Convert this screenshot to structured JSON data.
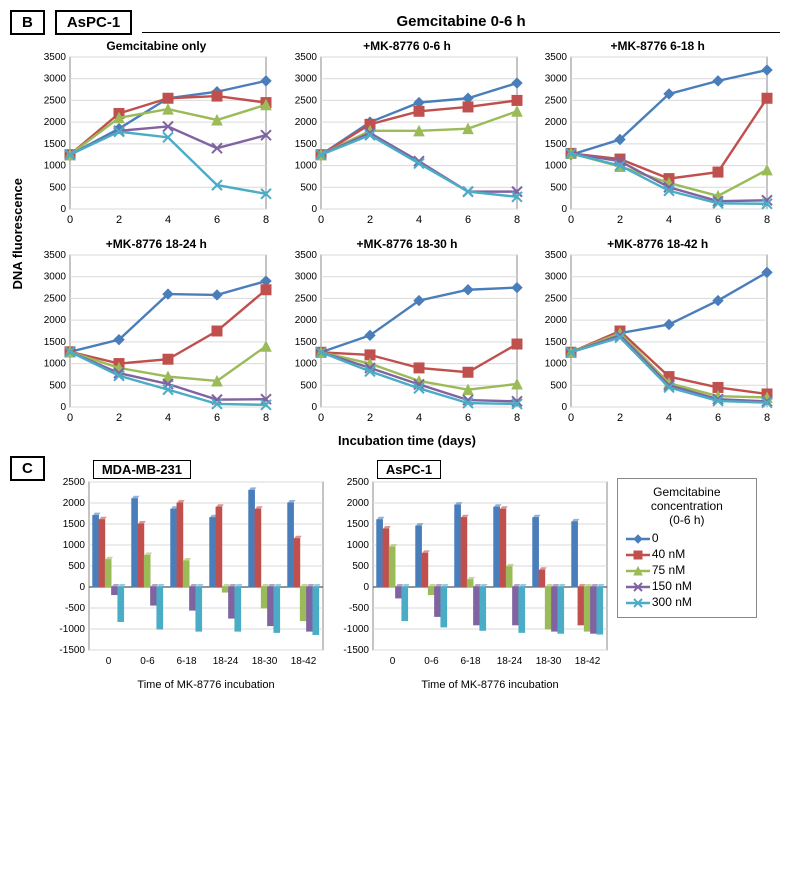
{
  "panelB": {
    "label": "B",
    "cell_line": "AsPC-1",
    "header": "Gemcitabine 0-6 h",
    "y_label": "DNA fluorescence",
    "x_label": "Incubation time (days)",
    "x_values": [
      0,
      2,
      4,
      6,
      8
    ],
    "ylim": [
      0,
      3500
    ],
    "ytick_step": 500,
    "grid_color": "#d9d9d9",
    "background": "#ffffff",
    "series_style": {
      "0": {
        "color": "#4a7ebb",
        "marker": "diamond"
      },
      "40": {
        "color": "#c0504d",
        "marker": "square"
      },
      "75": {
        "color": "#9bbb59",
        "marker": "triangle"
      },
      "150": {
        "color": "#8064a2",
        "marker": "x"
      },
      "300": {
        "color": "#4bacc6",
        "marker": "x"
      }
    },
    "subplots": [
      {
        "title": "Gemcitabine only",
        "data": {
          "0": [
            1250,
            1850,
            2550,
            2700,
            2950
          ],
          "40": [
            1250,
            2200,
            2550,
            2600,
            2450
          ],
          "75": [
            1250,
            2100,
            2300,
            2050,
            2400
          ],
          "150": [
            1250,
            1800,
            1900,
            1400,
            1700
          ],
          "300": [
            1250,
            1780,
            1650,
            550,
            350
          ]
        }
      },
      {
        "title": "+MK-8776 0-6 h",
        "data": {
          "0": [
            1250,
            2000,
            2450,
            2550,
            2900
          ],
          "40": [
            1250,
            1950,
            2250,
            2350,
            2500
          ],
          "75": [
            1250,
            1800,
            1800,
            1850,
            2250
          ],
          "150": [
            1250,
            1750,
            1100,
            400,
            400
          ],
          "300": [
            1250,
            1700,
            1050,
            400,
            280
          ]
        }
      },
      {
        "title": "+MK-8776 6-18 h",
        "data": {
          "0": [
            1250,
            1600,
            2650,
            2950,
            3200
          ],
          "40": [
            1280,
            1150,
            700,
            850,
            2550
          ],
          "75": [
            1280,
            980,
            600,
            300,
            900
          ],
          "150": [
            1280,
            1100,
            500,
            180,
            200
          ],
          "300": [
            1280,
            1000,
            420,
            130,
            120
          ]
        }
      },
      {
        "title": "+MK-8776 18-24 h",
        "data": {
          "0": [
            1270,
            1550,
            2600,
            2580,
            2900
          ],
          "40": [
            1270,
            1000,
            1100,
            1750,
            2700
          ],
          "75": [
            1270,
            900,
            700,
            600,
            1400
          ],
          "150": [
            1270,
            780,
            530,
            170,
            180
          ],
          "300": [
            1270,
            720,
            400,
            70,
            50
          ]
        }
      },
      {
        "title": "+MK-8776 18-30 h",
        "data": {
          "0": [
            1260,
            1650,
            2450,
            2700,
            2750
          ],
          "40": [
            1260,
            1200,
            900,
            800,
            1450
          ],
          "75": [
            1260,
            1000,
            600,
            400,
            530
          ],
          "150": [
            1260,
            900,
            520,
            160,
            130
          ],
          "300": [
            1260,
            820,
            430,
            90,
            70
          ]
        }
      },
      {
        "title": "+MK-8776 18-42 h",
        "data": {
          "0": [
            1260,
            1700,
            1900,
            2450,
            3100
          ],
          "40": [
            1260,
            1750,
            700,
            450,
            300
          ],
          "75": [
            1260,
            1700,
            550,
            250,
            220
          ],
          "150": [
            1260,
            1650,
            500,
            180,
            130
          ],
          "300": [
            1260,
            1600,
            450,
            140,
            100
          ]
        }
      }
    ]
  },
  "panelC": {
    "label": "C",
    "x_label": "Time of MK-8776 incubation",
    "x_categories": [
      "0",
      "0-6",
      "6-18",
      "18-24",
      "18-30",
      "18-42"
    ],
    "ylim": [
      -1500,
      2500
    ],
    "ytick_step": 500,
    "grid_color": "#d9d9d9",
    "background": "#ffffff",
    "bar_colors": {
      "0": "#4a7ebb",
      "40": "#c0504d",
      "75": "#9bbb59",
      "150": "#8064a2",
      "300": "#4bacc6"
    },
    "charts": [
      {
        "title": "MDA-MB-231",
        "data": {
          "0": [
            1700,
            2100,
            1850,
            1650,
            2300,
            2000
          ],
          "40": [
            1600,
            1500,
            2000,
            1900,
            1850,
            1150
          ],
          "75": [
            650,
            750,
            620,
            -120,
            -500,
            -800
          ],
          "150": [
            -180,
            -430,
            -550,
            -740,
            -920,
            -1050
          ],
          "300": [
            -820,
            -1000,
            -1050,
            -1050,
            -1080,
            -1130
          ]
        }
      },
      {
        "title": "AsPC-1",
        "data": {
          "0": [
            1600,
            1450,
            1950,
            1900,
            1650,
            1550
          ],
          "40": [
            1380,
            800,
            1650,
            1850,
            400,
            -900
          ],
          "75": [
            950,
            -180,
            170,
            480,
            -1000,
            -1050
          ],
          "150": [
            -260,
            -700,
            -900,
            -900,
            -1050,
            -1100
          ],
          "300": [
            -800,
            -950,
            -1030,
            -1080,
            -1100,
            -1120
          ]
        }
      }
    ]
  },
  "legend": {
    "title1": "Gemcitabine",
    "title2": "concentration",
    "title3": "(0-6 h)",
    "items": [
      {
        "key": "0",
        "label": "0"
      },
      {
        "key": "40",
        "label": "40 nM"
      },
      {
        "key": "75",
        "label": "75 nM"
      },
      {
        "key": "150",
        "label": "150 nM"
      },
      {
        "key": "300",
        "label": "300 nM"
      }
    ]
  }
}
